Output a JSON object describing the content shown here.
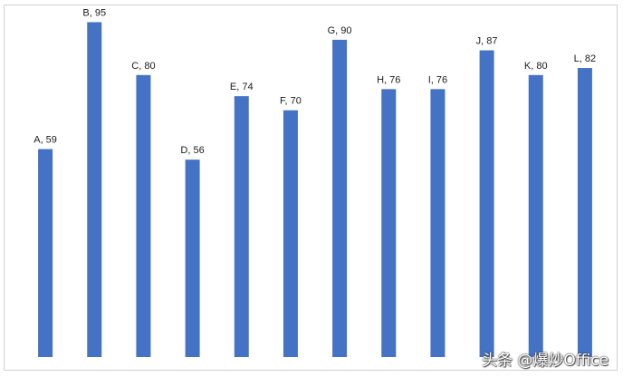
{
  "chart_data": {
    "type": "bar",
    "categories": [
      "A",
      "B",
      "C",
      "D",
      "E",
      "F",
      "G",
      "H",
      "I",
      "J",
      "K",
      "L"
    ],
    "values": [
      59,
      95,
      80,
      56,
      74,
      70,
      90,
      76,
      76,
      87,
      80,
      82
    ],
    "data_labels": [
      "A, 59",
      "B, 95",
      "C, 80",
      "D, 56",
      "E, 74",
      "F, 70",
      "G, 90",
      "H, 76",
      "I, 76",
      "J, 87",
      "K, 80",
      "L, 82"
    ],
    "title": "",
    "xlabel": "",
    "ylabel": "",
    "ylim": [
      0,
      100
    ],
    "grid": false,
    "legend": "none",
    "bar_color": "#4472C4"
  },
  "watermark": {
    "text": "头条 @爆炒Office"
  }
}
